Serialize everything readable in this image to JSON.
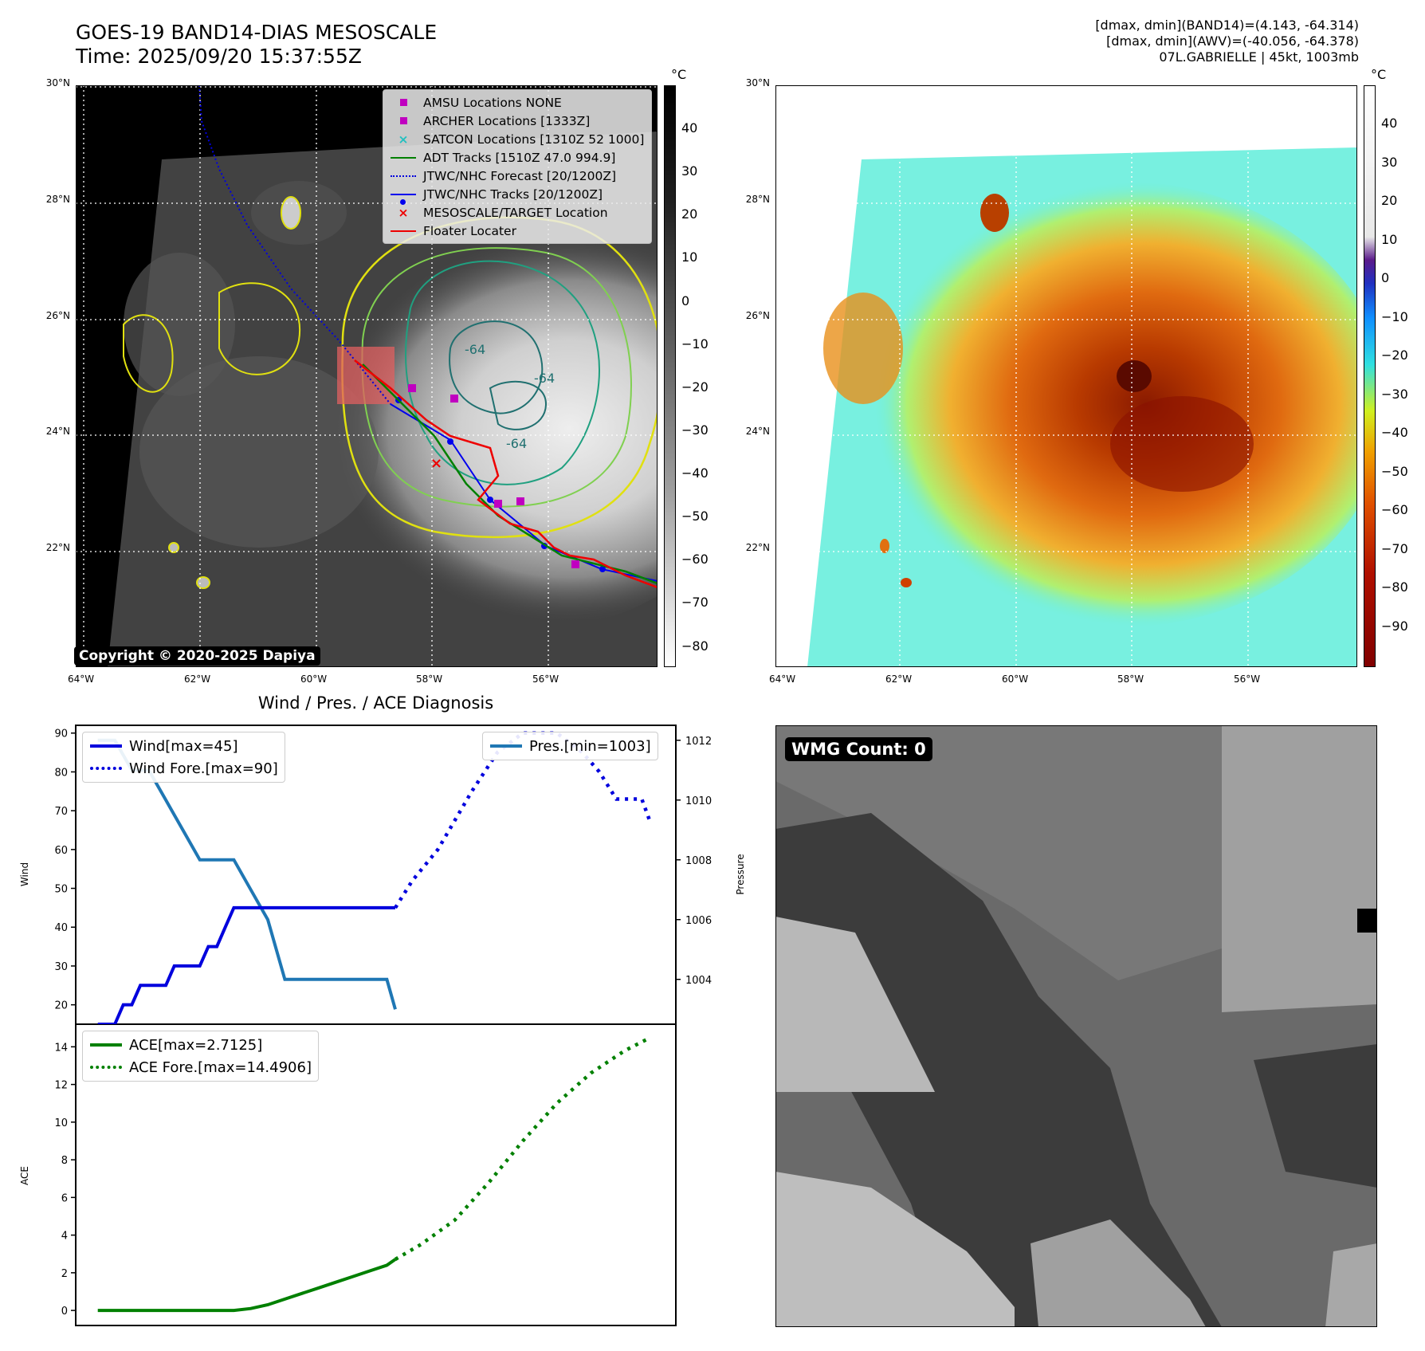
{
  "header": {
    "title_line1": "GOES-19 BAND14-DIAS MESOSCALE",
    "title_line2": "Time: 2025/09/20 15:37:55Z",
    "info_line1": "[dmax, dmin](BAND14)=(4.143, -64.314)",
    "info_line2": "[dmax, dmin](AWV)=(-40.056, -64.378)",
    "info_line3": "07L.GABRIELLE | 45kt, 1003mb"
  },
  "map_left": {
    "lat_labels": [
      "30°N",
      "28°N",
      "26°N",
      "24°N",
      "22°N"
    ],
    "lon_labels": [
      "64°W",
      "62°W",
      "60°W",
      "58°W",
      "56°W"
    ],
    "colorbar_unit": "°C",
    "colorbar_ticks": [
      "40",
      "30",
      "20",
      "10",
      "0",
      "−10",
      "−20",
      "−30",
      "−40",
      "−50",
      "−60",
      "−70",
      "−80"
    ],
    "copyright": "Copyright © 2020-2025 Dapiya",
    "contour_labels": [
      "-64",
      "-64",
      "-64"
    ],
    "legend": [
      {
        "label": "AMSU Locations NONE",
        "marker": "square",
        "color": "#c000c0"
      },
      {
        "label": "ARCHER Locations [1333Z]",
        "marker": "square",
        "color": "#c000c0"
      },
      {
        "label": "SATCON Locations [1310Z 52 1000]",
        "marker": "x",
        "color": "#20c0c0"
      },
      {
        "label": "ADT Tracks [1510Z 47.0 994.9]",
        "marker": "line",
        "color": "#008000"
      },
      {
        "label": "JTWC/NHC Forecast [20/1200Z]",
        "marker": "dotted",
        "color": "#0000dd"
      },
      {
        "label": "JTWC/NHC Tracks [20/1200Z]",
        "marker": "line-dot",
        "color": "#0000ee"
      },
      {
        "label": "MESOSCALE/TARGET Location",
        "marker": "x",
        "color": "#ee0000"
      },
      {
        "label": "Floater Locater",
        "marker": "line",
        "color": "#ee0000"
      }
    ]
  },
  "map_right": {
    "lat_labels": [
      "30°N",
      "28°N",
      "26°N",
      "24°N",
      "22°N"
    ],
    "lon_labels": [
      "64°W",
      "62°W",
      "60°W",
      "58°W",
      "56°W"
    ],
    "colorbar_unit": "°C",
    "colorbar_ticks": [
      "40",
      "30",
      "20",
      "10",
      "0",
      "−10",
      "−20",
      "−30",
      "−40",
      "−50",
      "−60",
      "−70",
      "−80",
      "−90"
    ]
  },
  "diagnosis": {
    "title": "Wind / Pres. / ACE Diagnosis",
    "wind_ylabel": "Wind",
    "pres_ylabel": "Pressure",
    "ace_ylabel": "ACE",
    "wind_legend": [
      "Wind[max=45]",
      "Wind Fore.[max=90]"
    ],
    "pres_legend": "Pres.[min=1003]",
    "ace_legend": [
      "ACE[max=2.7125]",
      "ACE Fore.[max=14.4906]"
    ],
    "colors": {
      "wind": "#0000dd",
      "pres": "#1f77b4",
      "ace": "#008000"
    }
  },
  "chart_data": [
    {
      "type": "line",
      "name_hint": "wind",
      "ylim": [
        15,
        92
      ],
      "yticks": [
        20,
        30,
        40,
        50,
        60,
        70,
        80,
        90
      ],
      "series": [
        {
          "name": "Wind[max=45]",
          "x": [
            0,
            1,
            1.5,
            2,
            2.5,
            3,
            3.5,
            4,
            4.5,
            5,
            5.5,
            6,
            6.5,
            7,
            7.5,
            8,
            8.5,
            9,
            9.5,
            10,
            10.5,
            11,
            11.5,
            12,
            12.5,
            13,
            13.5,
            14,
            14.5,
            15,
            15.5,
            16,
            16.5,
            17,
            17.5
          ],
          "values": [
            15,
            15,
            20,
            20,
            25,
            25,
            25,
            25,
            30,
            30,
            30,
            30,
            35,
            35,
            40,
            45,
            45,
            45,
            45,
            45,
            45,
            45,
            45,
            45,
            45,
            45,
            45,
            45,
            45,
            45,
            45,
            45,
            45,
            45,
            45
          ]
        },
        {
          "name": "Wind Fore.[max=90]",
          "x": [
            17.5,
            18.5,
            20,
            22,
            23.5,
            25,
            27,
            28.5,
            29.5,
            30.5,
            32,
            32.5
          ],
          "values": [
            45,
            52,
            60,
            75,
            85,
            90,
            90,
            85,
            80,
            73,
            73,
            67
          ]
        }
      ]
    },
    {
      "type": "line",
      "name_hint": "pressure",
      "ylim": [
        1002.5,
        1012.5
      ],
      "yticks": [
        1004,
        1006,
        1008,
        1010,
        1012
      ],
      "series": [
        {
          "name": "Pres.[min=1003]",
          "x": [
            0,
            1,
            2,
            3,
            4,
            5,
            6,
            7,
            8,
            9,
            10,
            11,
            12,
            13,
            14,
            15,
            16,
            17,
            17.5
          ],
          "values": [
            1012,
            1012,
            1011,
            1011,
            1010,
            1009,
            1008,
            1008,
            1008,
            1007,
            1006,
            1004,
            1004,
            1004,
            1004,
            1004,
            1004,
            1004,
            1003
          ]
        }
      ]
    },
    {
      "type": "line",
      "name_hint": "ace",
      "ylim": [
        -0.8,
        15.2
      ],
      "yticks": [
        0,
        2,
        4,
        6,
        8,
        10,
        12,
        14
      ],
      "series": [
        {
          "name": "ACE[max=2.7125]",
          "x": [
            0,
            2,
            4,
            6,
            8,
            9,
            10,
            11,
            12,
            13,
            14,
            15,
            16,
            17,
            17.5
          ],
          "values": [
            0,
            0,
            0,
            0,
            0,
            0.1,
            0.3,
            0.6,
            0.9,
            1.2,
            1.5,
            1.8,
            2.1,
            2.4,
            2.7125
          ]
        },
        {
          "name": "ACE Fore.[max=14.4906]",
          "x": [
            17.5,
            19,
            21,
            23,
            25,
            27,
            29,
            31,
            32.5
          ],
          "values": [
            2.7125,
            3.5,
            4.8,
            6.8,
            9.0,
            11.0,
            12.6,
            13.8,
            14.4906
          ]
        }
      ]
    }
  ]
}
